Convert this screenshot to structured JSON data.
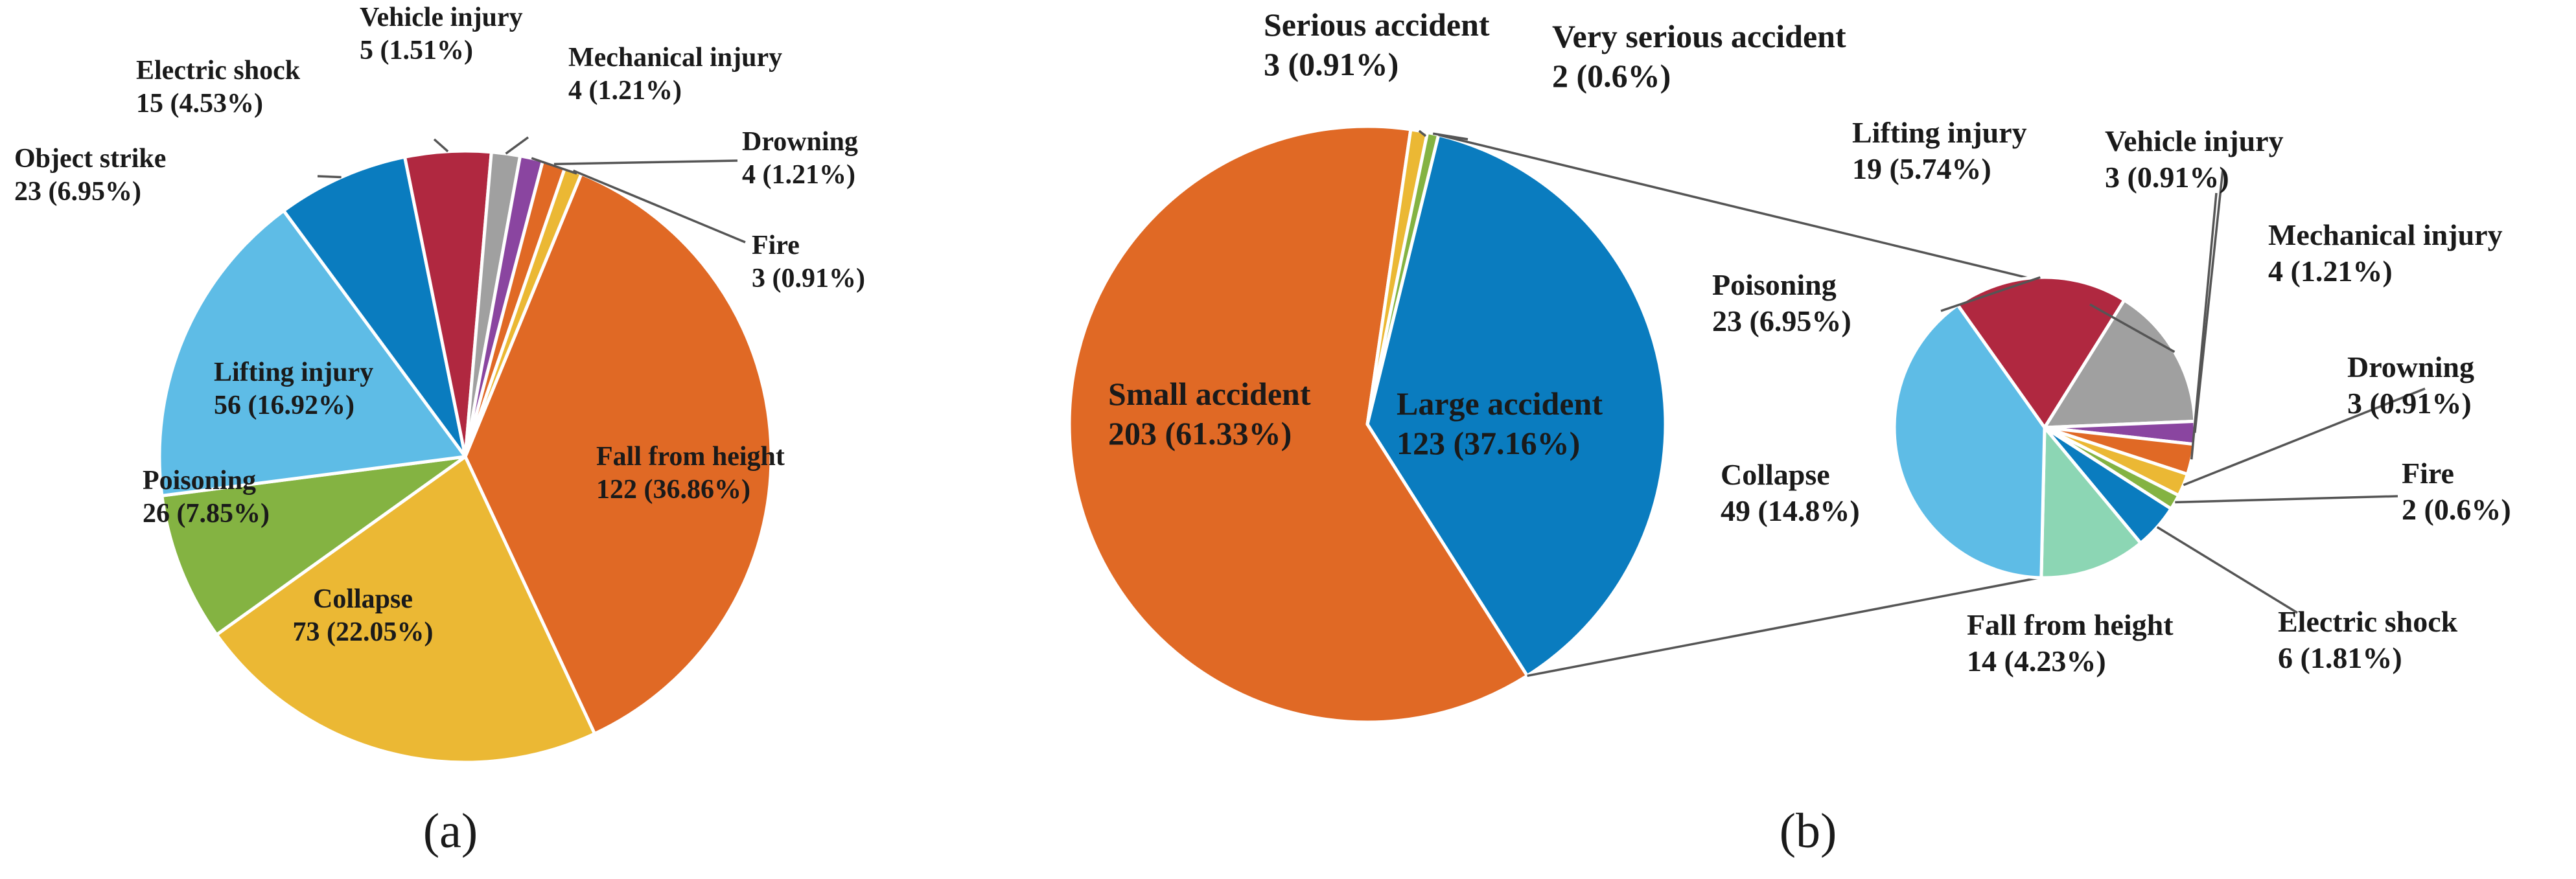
{
  "chart_data": [
    {
      "type": "pie",
      "panel_label": "(a)",
      "slices": [
        {
          "label": "Fall from height",
          "count": 122,
          "percent": "36.86%",
          "color": "#E06925"
        },
        {
          "label": "Collapse",
          "count": 73,
          "percent": "22.05%",
          "color": "#EBB834"
        },
        {
          "label": "Poisoning",
          "count": 26,
          "percent": "7.85%",
          "color": "#84B342"
        },
        {
          "label": "Lifting injury",
          "count": 56,
          "percent": "16.92%",
          "color": "#5EBCE6"
        },
        {
          "label": "Object strike",
          "count": 23,
          "percent": "6.95%",
          "color": "#0A7CBF"
        },
        {
          "label": "Electric shock",
          "count": 15,
          "percent": "4.53%",
          "color": "#B02840"
        },
        {
          "label": "Vehicle injury",
          "count": 5,
          "percent": "1.51%",
          "color": "#A0A0A0"
        },
        {
          "label": "Mechanical injury",
          "count": 4,
          "percent": "1.21%",
          "color": "#8A45A0"
        },
        {
          "label": "Drowning",
          "count": 4,
          "percent": "1.21%",
          "color": "#E06925"
        },
        {
          "label": "Fire",
          "count": 3,
          "percent": "0.91%",
          "color": "#EBB834"
        }
      ]
    },
    {
      "type": "pie",
      "panel_label": "(b)",
      "slices": [
        {
          "label": "Large accident",
          "count": 123,
          "percent": "37.16%",
          "color": "#0A7CBF"
        },
        {
          "label": "Small accident",
          "count": 203,
          "percent": "61.33%",
          "color": "#E06925"
        },
        {
          "label": "Serious accident",
          "count": 3,
          "percent": "0.91%",
          "color": "#EBB834"
        },
        {
          "label": "Very serious accident",
          "count": 2,
          "percent": "0.6%",
          "color": "#84B342"
        }
      ],
      "breakdown_of": "Large accident",
      "breakdown": [
        {
          "label": "Lifting injury",
          "count": 19,
          "percent": "5.74%",
          "color": "#A0A0A0"
        },
        {
          "label": "Vehicle injury",
          "count": 3,
          "percent": "0.91%",
          "color": "#8A45A0"
        },
        {
          "label": "Mechanical injury",
          "count": 4,
          "percent": "1.21%",
          "color": "#E06925"
        },
        {
          "label": "Drowning",
          "count": 3,
          "percent": "0.91%",
          "color": "#EBB834"
        },
        {
          "label": "Fire",
          "count": 2,
          "percent": "0.6%",
          "color": "#84B342"
        },
        {
          "label": "Electric shock",
          "count": 6,
          "percent": "1.81%",
          "color": "#0A7CBF"
        },
        {
          "label": "Fall from height",
          "count": 14,
          "percent": "4.23%",
          "color": "#8CD6B4"
        },
        {
          "label": "Collapse",
          "count": 49,
          "percent": "14.8%",
          "color": "#5EBCE6"
        },
        {
          "label": "Poisoning",
          "count": 23,
          "percent": "6.95%",
          "color": "#B02840"
        }
      ]
    }
  ]
}
